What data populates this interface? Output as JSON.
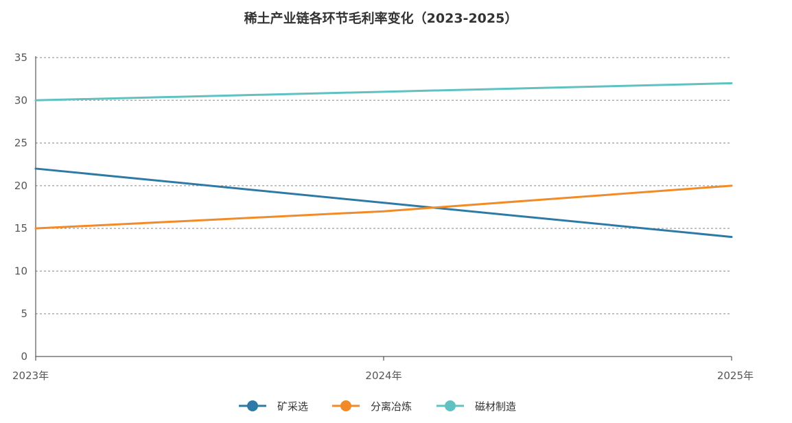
{
  "chart_data": {
    "type": "line",
    "title": "稀土产业链各环节毛利率变化（2023-2025）",
    "categories": [
      "2023年",
      "2024年",
      "2025年"
    ],
    "ylim": [
      0,
      35
    ],
    "yticks": [
      0,
      5,
      10,
      15,
      20,
      25,
      30,
      35
    ],
    "grid": true,
    "legend_position": "bottom",
    "series": [
      {
        "name": "矿采选",
        "values": [
          22,
          18,
          14
        ],
        "color": "#2E7AA6"
      },
      {
        "name": "分离冶炼",
        "values": [
          15,
          17,
          20
        ],
        "color": "#F28A27"
      },
      {
        "name": "磁材制造",
        "values": [
          30,
          31,
          32
        ],
        "color": "#5FC1C1"
      }
    ]
  }
}
